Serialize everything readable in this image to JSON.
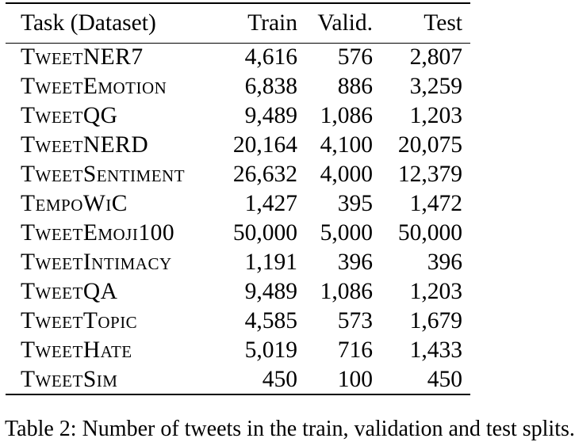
{
  "colors": {
    "background": "#ffffff",
    "text": "#000000",
    "rule": "#000000"
  },
  "table": {
    "header": {
      "task": "Task (Dataset)",
      "train": "Train",
      "valid": "Valid.",
      "test": "Test"
    },
    "rows": [
      {
        "task": "TweetNER7",
        "train": "4,616",
        "valid": "576",
        "test": "2,807"
      },
      {
        "task": "TweetEmotion",
        "train": "6,838",
        "valid": "886",
        "test": "3,259"
      },
      {
        "task": "TweetQG",
        "train": "9,489",
        "valid": "1,086",
        "test": "1,203"
      },
      {
        "task": "TweetNERD",
        "train": "20,164",
        "valid": "4,100",
        "test": "20,075"
      },
      {
        "task": "TweetSentiment",
        "train": "26,632",
        "valid": "4,000",
        "test": "12,379"
      },
      {
        "task": "TempoWiC",
        "train": "1,427",
        "valid": "395",
        "test": "1,472"
      },
      {
        "task": "TweetEmoji100",
        "train": "50,000",
        "valid": "5,000",
        "test": "50,000"
      },
      {
        "task": "TweetIntimacy",
        "train": "1,191",
        "valid": "396",
        "test": "396"
      },
      {
        "task": "TweetQA",
        "train": "9,489",
        "valid": "1,086",
        "test": "1,203"
      },
      {
        "task": "TweetTopic",
        "train": "4,585",
        "valid": "573",
        "test": "1,679"
      },
      {
        "task": "TweetHate",
        "train": "5,019",
        "valid": "716",
        "test": "1,433"
      },
      {
        "task": "TweetSim",
        "train": "450",
        "valid": "100",
        "test": "450"
      }
    ]
  },
  "caption": {
    "clipped_text": "Table 2: Number of tweets in the train, validation and test splits."
  }
}
